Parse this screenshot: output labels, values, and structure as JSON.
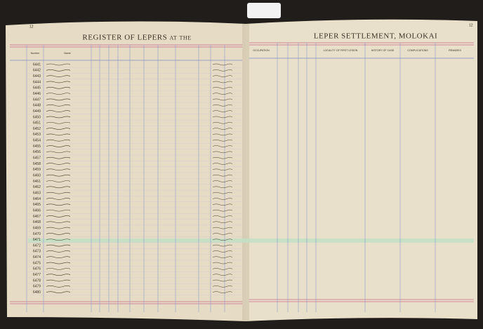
{
  "left_page": {
    "page_number": "12",
    "title": "REGISTER OF LEPERS at the",
    "columns": [
      "Number",
      "Name"
    ]
  },
  "right_page": {
    "page_number": "12",
    "title": "LEPER SETTLEMENT, MOLOKAI",
    "columns": [
      "OCCUPATION",
      "LOCALITY OF FIRST LESION",
      "HISTORY OF CASE",
      "COMPLICATIONS",
      "REMARKS"
    ]
  },
  "row_numbers": [
    "6441",
    "6442",
    "6443",
    "6444",
    "6445",
    "6446",
    "6447",
    "6448",
    "6449",
    "6450",
    "6451",
    "6452",
    "6453",
    "6454",
    "6455",
    "6456",
    "6457",
    "6458",
    "6459",
    "6460",
    "6461",
    "6462",
    "6463",
    "6464",
    "6465",
    "6466",
    "6467",
    "6468",
    "6469",
    "6470",
    "6471",
    "6472",
    "6473",
    "6474",
    "6475",
    "6476",
    "6477",
    "6478",
    "6479",
    "6480"
  ]
}
